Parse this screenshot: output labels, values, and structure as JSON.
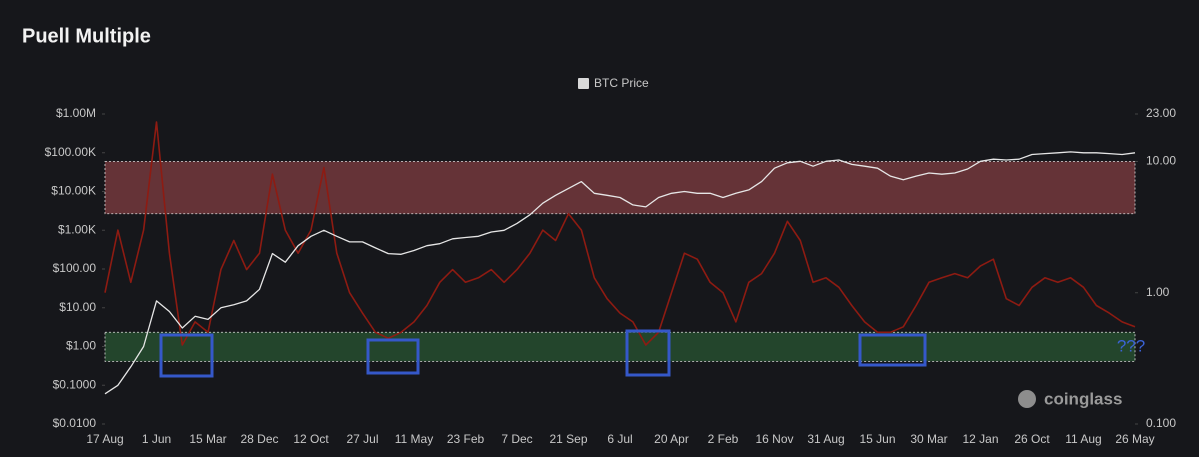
{
  "chart_data": {
    "type": "line",
    "title": "Puell Multiple",
    "watermark": "coinglass",
    "annotation": "???",
    "categories": [
      "17 Aug",
      null,
      null,
      null,
      "1 Jun",
      null,
      null,
      null,
      "15 Mar",
      null,
      null,
      null,
      "28 Dec",
      null,
      null,
      null,
      "12 Oct",
      null,
      null,
      null,
      "27 Jul",
      null,
      null,
      null,
      "11 May",
      null,
      null,
      null,
      "23 Feb",
      null,
      null,
      null,
      "7 Dec",
      null,
      null,
      null,
      "21 Sep",
      null,
      null,
      null,
      "6 Jul",
      null,
      null,
      null,
      "20 Apr",
      null,
      null,
      null,
      "2 Feb",
      null,
      null,
      null,
      "16 Nov",
      null,
      null,
      null,
      "31 Aug",
      null,
      null,
      null,
      "15 Jun",
      null,
      null,
      null,
      "30 Mar",
      null,
      null,
      null,
      "12 Jan",
      null,
      null,
      null,
      "26 Oct",
      null,
      null,
      null,
      "11 Aug",
      null,
      null,
      null,
      "26 May"
    ],
    "series": [
      {
        "color": "#8e1b12",
        "axis": "y2",
        "values": [
          1,
          3,
          1.2,
          3,
          20,
          2,
          0.4,
          0.6,
          0.5,
          1.5,
          2.5,
          1.5,
          2,
          8,
          3,
          2,
          3,
          9,
          2,
          1,
          0.7,
          0.5,
          0.45,
          0.5,
          0.6,
          0.8,
          1.2,
          1.5,
          1.2,
          1.3,
          1.5,
          1.2,
          1.5,
          2,
          3,
          2.5,
          4,
          3,
          1.3,
          0.9,
          0.7,
          0.6,
          0.4,
          0.5,
          1,
          2,
          1.8,
          1.2,
          1,
          0.6,
          1.2,
          1.4,
          2,
          3.5,
          2.5,
          1.2,
          1.3,
          1.1,
          0.8,
          0.6,
          0.5,
          0.5,
          0.55,
          0.8,
          1.2,
          1.3,
          1.4,
          1.3,
          1.6,
          1.8,
          0.9,
          0.8,
          1.1,
          1.3,
          1.2,
          1.3,
          1.1,
          0.8,
          0.7,
          0.6,
          0.55
        ]
      },
      {
        "name": "BTC Price",
        "color": "#e6e6e6",
        "values": [
          0.06,
          0.1,
          0.3,
          1,
          15,
          8,
          3,
          6,
          5,
          10,
          12,
          15,
          30,
          250,
          150,
          400,
          700,
          1000,
          700,
          500,
          500,
          350,
          250,
          240,
          300,
          400,
          450,
          600,
          650,
          700,
          900,
          1000,
          1500,
          2500,
          5000,
          8000,
          12000,
          18000,
          9000,
          8000,
          7000,
          4500,
          4000,
          7000,
          9000,
          10000,
          9000,
          9000,
          7000,
          9000,
          11000,
          18000,
          40000,
          55000,
          60000,
          45000,
          60000,
          65000,
          50000,
          45000,
          40000,
          25000,
          20000,
          25000,
          30000,
          28000,
          30000,
          38000,
          60000,
          68000,
          65000,
          68000,
          90000,
          95000,
          100000,
          105000,
          100000,
          100000,
          95000,
          90000,
          100000
        ]
      }
    ],
    "log_scale": true,
    "ylim": [
      0.01,
      1000000
    ],
    "yticks": [
      {
        "value": 1000000,
        "label": "$1.00M"
      },
      {
        "value": 100000,
        "label": "$100.00K"
      },
      {
        "value": 10000,
        "label": "$10.00K"
      },
      {
        "value": 1000,
        "label": "$1.00K"
      },
      {
        "value": 100,
        "label": "$100.00"
      },
      {
        "value": 10,
        "label": "$10.00"
      },
      {
        "value": 1,
        "label": "$1.00"
      },
      {
        "value": 0.1,
        "label": "$0.1000"
      },
      {
        "value": 0.01,
        "label": "$0.0100"
      }
    ],
    "y2lim": [
      0.1,
      23
    ],
    "y2ticks": [
      {
        "value": 23,
        "label": "23.00"
      },
      {
        "value": 10,
        "label": "10.00"
      },
      {
        "value": 1,
        "label": "1.00"
      },
      {
        "value": 0.1,
        "label": "0.100"
      }
    ],
    "y2_bands": [
      {
        "from": 4,
        "to": 10,
        "color": "#a84a4e"
      },
      {
        "from": 0.3,
        "to": 0.5,
        "color": "#2f6b3a"
      }
    ],
    "legend": "top"
  }
}
